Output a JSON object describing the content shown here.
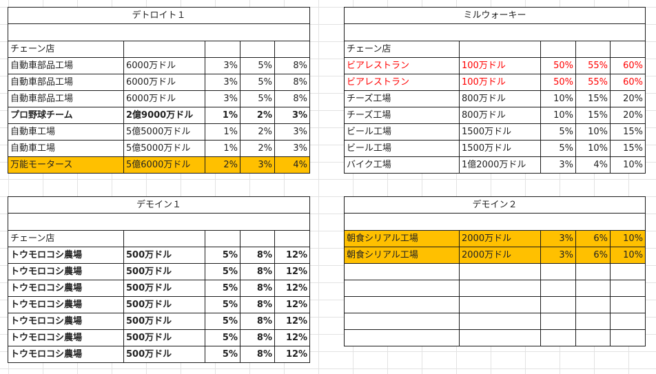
{
  "detroit": {
    "title": "デトロイト１",
    "header": "チェーン店",
    "rows": [
      {
        "name": "自動車部品工場",
        "cost": "6000万ドル",
        "p1": "3%",
        "p2": "5%",
        "p3": "8%"
      },
      {
        "name": "自動車部品工場",
        "cost": "6000万ドル",
        "p1": "3%",
        "p2": "5%",
        "p3": "8%"
      },
      {
        "name": "自動車部品工場",
        "cost": "6000万ドル",
        "p1": "3%",
        "p2": "5%",
        "p3": "8%"
      },
      {
        "name": "プロ野球チーム",
        "cost": "2億9000万ドル",
        "p1": "1%",
        "p2": "2%",
        "p3": "3%",
        "style": "bold"
      },
      {
        "name": "自動車工場",
        "cost": "5億5000万ドル",
        "p1": "1%",
        "p2": "2%",
        "p3": "3%"
      },
      {
        "name": "自動車工場",
        "cost": "5億5000万ドル",
        "p1": "1%",
        "p2": "2%",
        "p3": "3%"
      },
      {
        "name": "万能モータース",
        "cost": "5億6000万ドル",
        "p1": "2%",
        "p2": "3%",
        "p3": "4%",
        "style": "hl"
      }
    ]
  },
  "milwaukee": {
    "title": "ミルウォーキー",
    "header": "チェーン店",
    "rows": [
      {
        "name": "ビアレストラン",
        "cost": "100万ドル",
        "p1": "50%",
        "p2": "55%",
        "p3": "60%",
        "style": "red"
      },
      {
        "name": "ビアレストラン",
        "cost": "100万ドル",
        "p1": "50%",
        "p2": "55%",
        "p3": "60%",
        "style": "red"
      },
      {
        "name": "チーズ工場",
        "cost": "800万ドル",
        "p1": "10%",
        "p2": "15%",
        "p3": "20%"
      },
      {
        "name": "チーズ工場",
        "cost": "800万ドル",
        "p1": "10%",
        "p2": "15%",
        "p3": "20%"
      },
      {
        "name": "ビール工場",
        "cost": "1500万ドル",
        "p1": "5%",
        "p2": "10%",
        "p3": "15%"
      },
      {
        "name": "ビール工場",
        "cost": "1500万ドル",
        "p1": "5%",
        "p2": "10%",
        "p3": "15%"
      },
      {
        "name": "バイク工場",
        "cost": "1億2000万ドル",
        "p1": "3%",
        "p2": "4%",
        "p3": "10%"
      }
    ]
  },
  "desmoines1": {
    "title": "デモイン１",
    "header": "チェーン店",
    "rows": [
      {
        "name": "トウモロコシ農場",
        "cost": "500万ドル",
        "p1": "5%",
        "p2": "8%",
        "p3": "12%",
        "style": "bold"
      },
      {
        "name": "トウモロコシ農場",
        "cost": "500万ドル",
        "p1": "5%",
        "p2": "8%",
        "p3": "12%",
        "style": "bold"
      },
      {
        "name": "トウモロコシ農場",
        "cost": "500万ドル",
        "p1": "5%",
        "p2": "8%",
        "p3": "12%",
        "style": "bold"
      },
      {
        "name": "トウモロコシ農場",
        "cost": "500万ドル",
        "p1": "5%",
        "p2": "8%",
        "p3": "12%",
        "style": "bold"
      },
      {
        "name": "トウモロコシ農場",
        "cost": "500万ドル",
        "p1": "5%",
        "p2": "8%",
        "p3": "12%",
        "style": "bold"
      },
      {
        "name": "トウモロコシ農場",
        "cost": "500万ドル",
        "p1": "5%",
        "p2": "8%",
        "p3": "12%",
        "style": "bold"
      },
      {
        "name": "トウモロコシ農場",
        "cost": "500万ドル",
        "p1": "5%",
        "p2": "8%",
        "p3": "12%",
        "style": "bold"
      }
    ]
  },
  "desmoines2": {
    "title": "デモイン２",
    "header": "",
    "rows": [
      {
        "name": "朝食シリアル工場",
        "cost": "2000万ドル",
        "p1": "3%",
        "p2": "6%",
        "p3": "10%",
        "style": "hl"
      },
      {
        "name": "朝食シリアル工場",
        "cost": "2000万ドル",
        "p1": "3%",
        "p2": "6%",
        "p3": "10%",
        "style": "hl"
      },
      {
        "name": "",
        "cost": "",
        "p1": "",
        "p2": "",
        "p3": ""
      },
      {
        "name": "",
        "cost": "",
        "p1": "",
        "p2": "",
        "p3": ""
      },
      {
        "name": "",
        "cost": "",
        "p1": "",
        "p2": "",
        "p3": ""
      },
      {
        "name": "",
        "cost": "",
        "p1": "",
        "p2": "",
        "p3": ""
      },
      {
        "name": "",
        "cost": "",
        "p1": "",
        "p2": "",
        "p3": ""
      }
    ]
  },
  "colors": {
    "highlight": "#ffc000",
    "red_text": "#ff0000",
    "border": "#1a1a1a",
    "gridline": "#e2e2e2"
  }
}
